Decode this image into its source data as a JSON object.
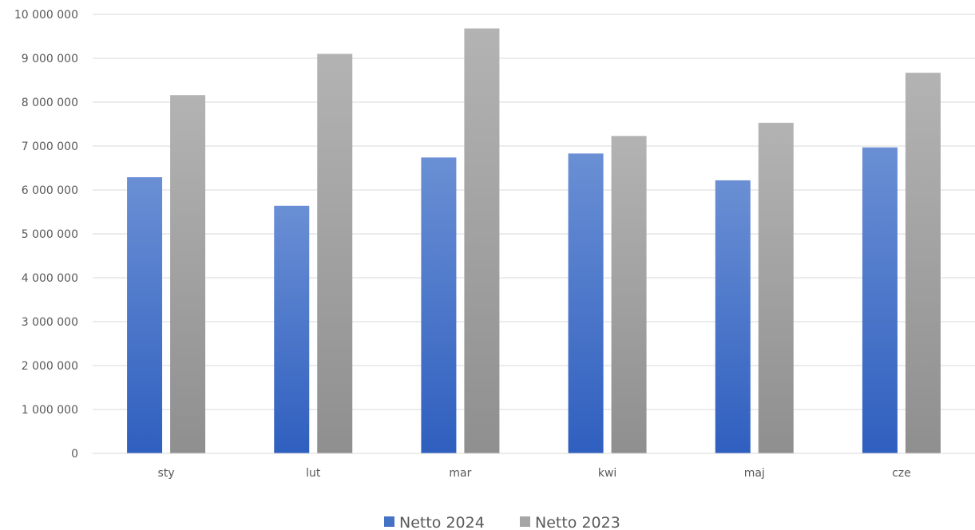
{
  "chart_data": {
    "type": "bar",
    "categories": [
      "sty",
      "lut",
      "mar",
      "kwi",
      "maj",
      "cze"
    ],
    "series": [
      {
        "name": "Netto 2024",
        "values": [
          6290000,
          5640000,
          6740000,
          6830000,
          6220000,
          6970000
        ],
        "color": "#4472c4"
      },
      {
        "name": "Netto 2023",
        "values": [
          8160000,
          9100000,
          9680000,
          7230000,
          7530000,
          8670000
        ],
        "color": "#a5a5a5"
      }
    ],
    "y_ticks": [
      "0",
      "1 000 000",
      "2 000 000",
      "3 000 000",
      "4 000 000",
      "5 000 000",
      "6 000 000",
      "7 000 000",
      "8 000 000",
      "9 000 000",
      "10 000 000"
    ],
    "ylim": [
      0,
      10000000
    ],
    "grid": true,
    "legend_position": "bottom"
  }
}
